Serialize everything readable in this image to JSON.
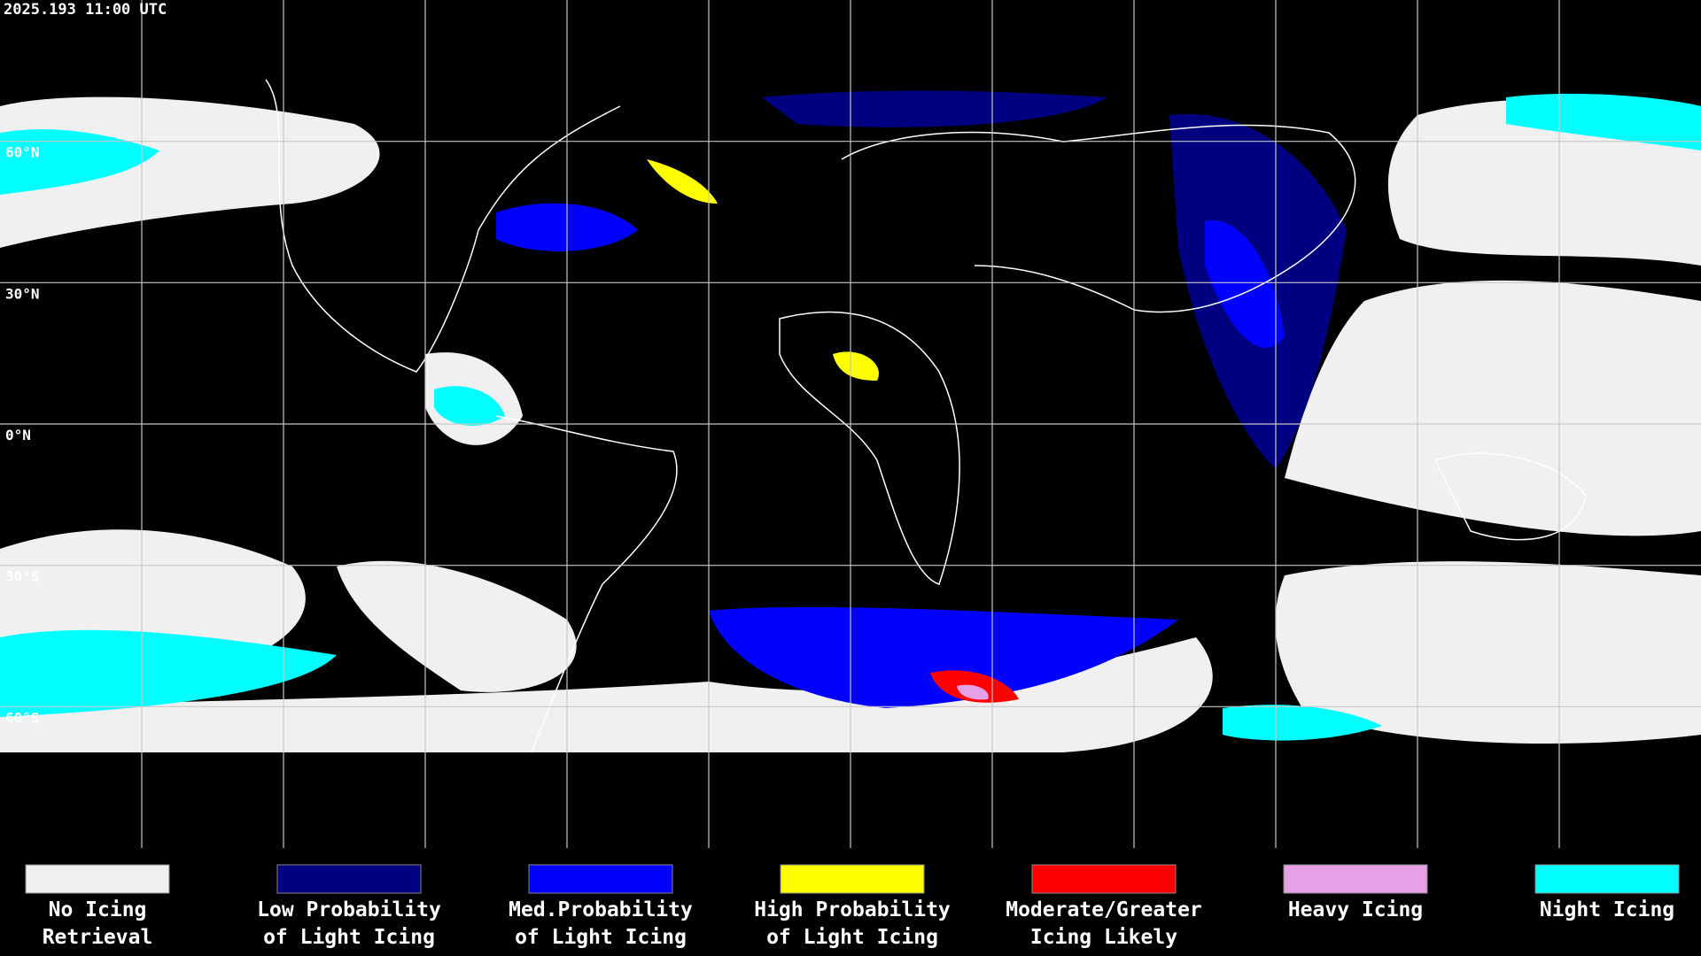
{
  "header": {
    "timestamp": "2025.193 11:00 UTC"
  },
  "latitudes": [
    {
      "value": 60,
      "label": "60°N"
    },
    {
      "value": 30,
      "label": "30°N"
    },
    {
      "value": 0,
      "label": "0°N"
    },
    {
      "value": -30,
      "label": "30°S"
    },
    {
      "value": -60,
      "label": "60°S"
    }
  ],
  "legend": [
    {
      "lines": [
        "No Icing",
        "Retrieval"
      ],
      "color": "#f0f0f0"
    },
    {
      "lines": [
        "Low Probability",
        "of Light Icing"
      ],
      "color": "#000080"
    },
    {
      "lines": [
        "Med.Probability",
        "of Light Icing"
      ],
      "color": "#0000ff"
    },
    {
      "lines": [
        "High Probability",
        "of Light Icing"
      ],
      "color": "#ffff00"
    },
    {
      "lines": [
        "Moderate/Greater",
        "Icing Likely"
      ],
      "color": "#ff0000"
    },
    {
      "lines": [
        "Heavy Icing"
      ],
      "color": "#e6a0e6"
    },
    {
      "lines": [
        "Night Icing"
      ],
      "color": "#00ffff"
    }
  ]
}
